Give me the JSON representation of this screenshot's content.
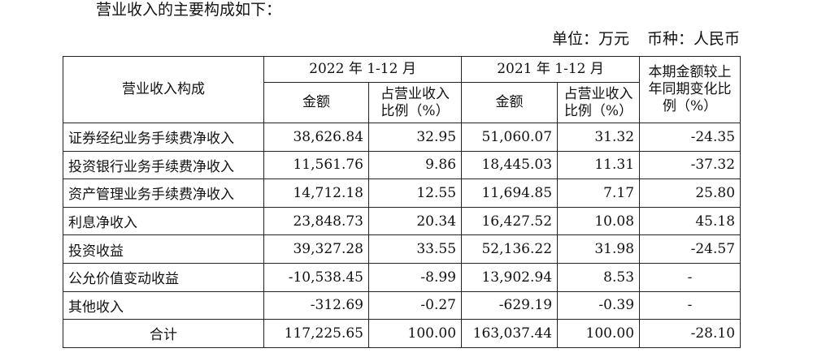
{
  "intro_text": "营业收入的主要构成如下：",
  "unit": {
    "unit_text": "单位：万元",
    "currency_text": "币种：人民币"
  },
  "table": {
    "header": {
      "composition": "营业收入构成",
      "period_2022": "2022 年 1-12 月",
      "period_2021": "2021 年 1-12 月",
      "amount": "金额",
      "share_line1": "占营业收入",
      "share_line2": "比例（%）",
      "change_line1": "本期金额较上",
      "change_line2": "年同期变化比",
      "change_line3": "例（%）"
    },
    "rows": [
      {
        "name": "证券经纪业务手续费净收入",
        "amount_2022": "38,626.84",
        "share_2022": "32.95",
        "amount_2021": "51,060.07",
        "share_2021": "31.32",
        "change": "-24.35"
      },
      {
        "name": "投资银行业务手续费净收入",
        "amount_2022": "11,561.76",
        "share_2022": "9.86",
        "amount_2021": "18,445.03",
        "share_2021": "11.31",
        "change": "-37.32"
      },
      {
        "name": "资产管理业务手续费净收入",
        "amount_2022": "14,712.18",
        "share_2022": "12.55",
        "amount_2021": "11,694.85",
        "share_2021": "7.17",
        "change": "25.80"
      },
      {
        "name": "利息净收入",
        "amount_2022": "23,848.73",
        "share_2022": "20.34",
        "amount_2021": "16,427.52",
        "share_2021": "10.08",
        "change": "45.18"
      },
      {
        "name": "投资收益",
        "amount_2022": "39,327.28",
        "share_2022": "33.55",
        "amount_2021": "52,136.22",
        "share_2021": "31.98",
        "change": "-24.57"
      },
      {
        "name": "公允价值变动收益",
        "amount_2022": "-10,538.45",
        "share_2022": "-8.99",
        "amount_2021": "13,902.94",
        "share_2021": "8.53",
        "change": "-"
      },
      {
        "name": "其他收入",
        "amount_2022": "-312.69",
        "share_2022": "-0.27",
        "amount_2021": "-629.19",
        "share_2021": "-0.39",
        "change": "-"
      }
    ],
    "total": {
      "name": "合计",
      "amount_2022": "117,225.65",
      "share_2022": "100.00",
      "amount_2021": "163,037.44",
      "share_2021": "100.00",
      "change": "-28.10"
    }
  }
}
